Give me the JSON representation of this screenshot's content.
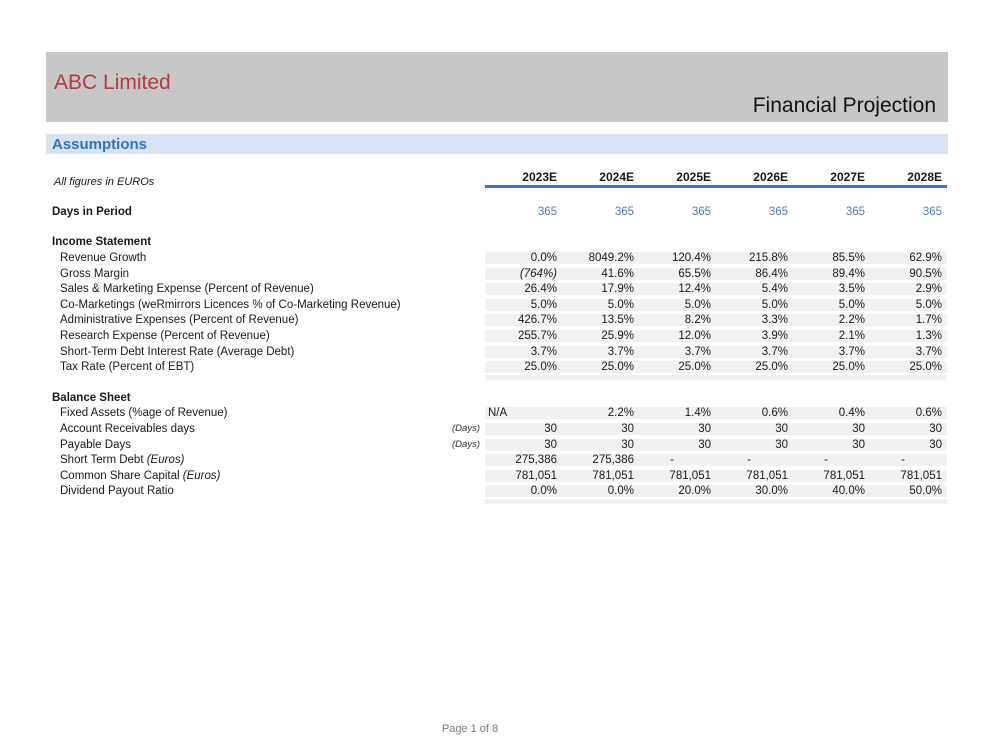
{
  "header": {
    "company": "ABC Limited",
    "title": "Financial Projection"
  },
  "section": {
    "title": "Assumptions"
  },
  "table": {
    "note": "All figures in EUROs",
    "columns": [
      "2023E",
      "2024E",
      "2025E",
      "2026E",
      "2027E",
      "2028E"
    ],
    "days": {
      "label": "Days in Period",
      "values": [
        "365",
        "365",
        "365",
        "365",
        "365",
        "365"
      ]
    },
    "groups": [
      {
        "title": "Income Statement",
        "rows": [
          {
            "label": "Revenue Growth",
            "values": [
              "0.0%",
              "8049.2%",
              "120.4%",
              "215.8%",
              "85.5%",
              "62.9%"
            ]
          },
          {
            "label": "Gross Margin",
            "values": [
              "(764%)",
              "41.6%",
              "65.5%",
              "86.4%",
              "89.4%",
              "90.5%"
            ],
            "italic_cells": [
              0
            ]
          },
          {
            "label": "Sales & Marketing Expense (Percent of Revenue)",
            "values": [
              "26.4%",
              "17.9%",
              "12.4%",
              "5.4%",
              "3.5%",
              "2.9%"
            ]
          },
          {
            "label": "Co-Marketings (weRmirrors Licences % of Co-Marketing Revenue)",
            "values": [
              "5.0%",
              "5.0%",
              "5.0%",
              "5.0%",
              "5.0%",
              "5.0%"
            ]
          },
          {
            "label": "Administrative Expenses (Percent of Revenue)",
            "values": [
              "426.7%",
              "13.5%",
              "8.2%",
              "3.3%",
              "2.2%",
              "1.7%"
            ]
          },
          {
            "label": "Research Expense (Percent of Revenue)",
            "values": [
              "255.7%",
              "25.9%",
              "12.0%",
              "3.9%",
              "2.1%",
              "1.3%"
            ]
          },
          {
            "label": "Short-Term Debt Interest Rate (Average Debt)",
            "values": [
              "3.7%",
              "3.7%",
              "3.7%",
              "3.7%",
              "3.7%",
              "3.7%"
            ]
          },
          {
            "label": "Tax Rate (Percent of EBT)",
            "values": [
              "25.0%",
              "25.0%",
              "25.0%",
              "25.0%",
              "25.0%",
              "25.0%"
            ]
          }
        ]
      },
      {
        "title": "Balance Sheet",
        "rows": [
          {
            "label": "Fixed Assets (%age of Revenue)",
            "values": [
              "N/A",
              "2.2%",
              "1.4%",
              "0.6%",
              "0.4%",
              "0.6%"
            ],
            "left_cells": [
              0
            ]
          },
          {
            "label": "Account Receivables days",
            "note": "(Days)",
            "values": [
              "30",
              "30",
              "30",
              "30",
              "30",
              "30"
            ]
          },
          {
            "label": "Payable Days",
            "note": "(Days)",
            "values": [
              "30",
              "30",
              "30",
              "30",
              "30",
              "30"
            ]
          },
          {
            "label": "Short Term Debt",
            "suffix": "(Euros)",
            "values": [
              "275,386",
              "275,386",
              "-",
              "-",
              "-",
              "-"
            ]
          },
          {
            "label": "Common Share Capital",
            "suffix": "(Euros)",
            "values": [
              "781,051",
              "781,051",
              "781,051",
              "781,051",
              "781,051",
              "781,051"
            ]
          },
          {
            "label": "Dividend Payout Ratio",
            "values": [
              "0.0%",
              "0.0%",
              "20.0%",
              "30.0%",
              "40.0%",
              "50.0%"
            ]
          }
        ]
      }
    ]
  },
  "footer": {
    "page": "Page 1 of 8"
  },
  "colors": {
    "accent_red": "#b23b43",
    "accent_blue": "#2f74c7",
    "underline_blue": "#4472c4",
    "value_blue": "#4a7cbe",
    "banner_gray": "#c7c7c7",
    "section_bg": "#d9e2f3",
    "cell_bg": "#f1f1f1"
  }
}
